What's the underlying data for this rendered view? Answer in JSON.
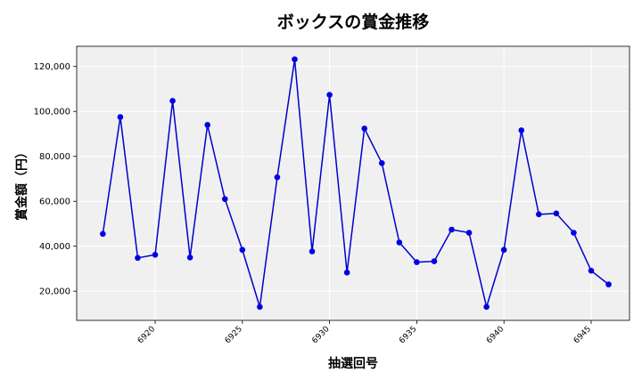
{
  "chart_data": {
    "type": "line",
    "title": "ボックスの賞金推移",
    "xlabel": "抽選回号",
    "ylabel": "賞金額（円）",
    "x": [
      6917,
      6918,
      6919,
      6920,
      6921,
      6922,
      6923,
      6924,
      6925,
      6926,
      6927,
      6928,
      6929,
      6930,
      6931,
      6932,
      6933,
      6934,
      6935,
      6936,
      6937,
      6938,
      6939,
      6940,
      6941,
      6942,
      6943,
      6944,
      6945,
      6946
    ],
    "series": [
      {
        "values": [
          45500,
          97500,
          34800,
          36200,
          104700,
          35000,
          94000,
          61000,
          38400,
          13000,
          70700,
          123200,
          37700,
          107400,
          28300,
          92400,
          77000,
          41700,
          32900,
          33300,
          47400,
          46000,
          13000,
          38400,
          91600,
          54200,
          54600,
          46000,
          29100,
          23000
        ]
      }
    ],
    "xlim": [
      6915.5,
      6947.2
    ],
    "ylim": [
      7000,
      129000
    ],
    "xticks": [
      6920,
      6925,
      6930,
      6935,
      6940,
      6945
    ],
    "xtick_labels": [
      "6920",
      "6925",
      "6930",
      "6935",
      "6940",
      "6945"
    ],
    "yticks": [
      20000,
      40000,
      60000,
      80000,
      100000,
      120000
    ],
    "ytick_labels": [
      "20,000",
      "40,000",
      "60,000",
      "80,000",
      "100,000",
      "120,000"
    ],
    "grid": true,
    "line_color": "#0000cc",
    "marker_color": "#0000e6",
    "plot_background": "#f0f0f0"
  }
}
